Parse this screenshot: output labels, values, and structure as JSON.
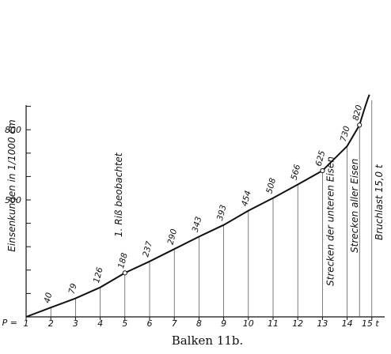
{
  "chart_data": {
    "type": "line",
    "title": "Balken 11b.",
    "ylabel": "Einsenkungen in 1/1000 cm",
    "x_axis_prefix": "P =",
    "x_unit": "t",
    "x_ticks": [
      "1",
      "2",
      "3",
      "4",
      "5",
      "6",
      "7",
      "8",
      "9",
      "10",
      "11",
      "12",
      "13",
      "14",
      "15"
    ],
    "y_ticks": [
      "500",
      "800"
    ],
    "xlim": [
      1,
      15
    ],
    "ylim": [
      0,
      950
    ],
    "grid": false,
    "series": [
      {
        "x": [
          1,
          2,
          3,
          4,
          5,
          6,
          7,
          8,
          9,
          10,
          11,
          12,
          13,
          14,
          14.5
        ],
        "y": [
          0,
          40,
          79,
          126,
          188,
          237,
          290,
          343,
          393,
          454,
          508,
          566,
          625,
          730,
          820
        ],
        "point_labels": [
          "",
          "40",
          "79",
          "126",
          "188",
          "237",
          "290",
          "343",
          "393",
          "454",
          "508",
          "566",
          "625",
          "730",
          "820"
        ],
        "open_markers_x": [
          5,
          13,
          14.5
        ],
        "upturn_end": {
          "x": 14.9,
          "y": 950
        }
      }
    ],
    "annotations": [
      {
        "text": "1. Riß beobachtet",
        "x": 5
      },
      {
        "text": "Strecken der unteren Eisen",
        "x": 13
      },
      {
        "text": "Strecken aller Eisen",
        "x": 14.5
      },
      {
        "text": "Bruchlast 15,0 t",
        "x": 15
      }
    ]
  }
}
